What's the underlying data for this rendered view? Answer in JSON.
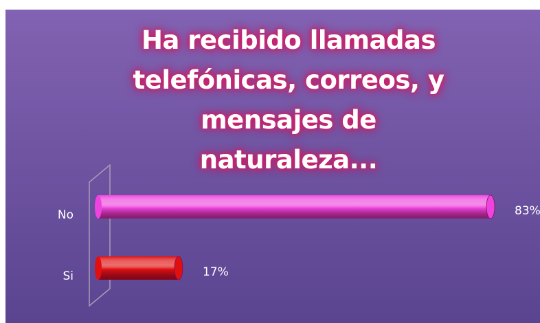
{
  "chart_data": {
    "type": "bar",
    "orientation": "horizontal",
    "title": "Ha recibido llamadas telefónicas, correos, y mensajes de naturaleza...",
    "categories": [
      "No",
      "Si"
    ],
    "values": [
      83,
      17
    ],
    "value_labels": [
      "83%",
      "17%"
    ],
    "colors": [
      "#ee44dd",
      "#e01010"
    ]
  }
}
